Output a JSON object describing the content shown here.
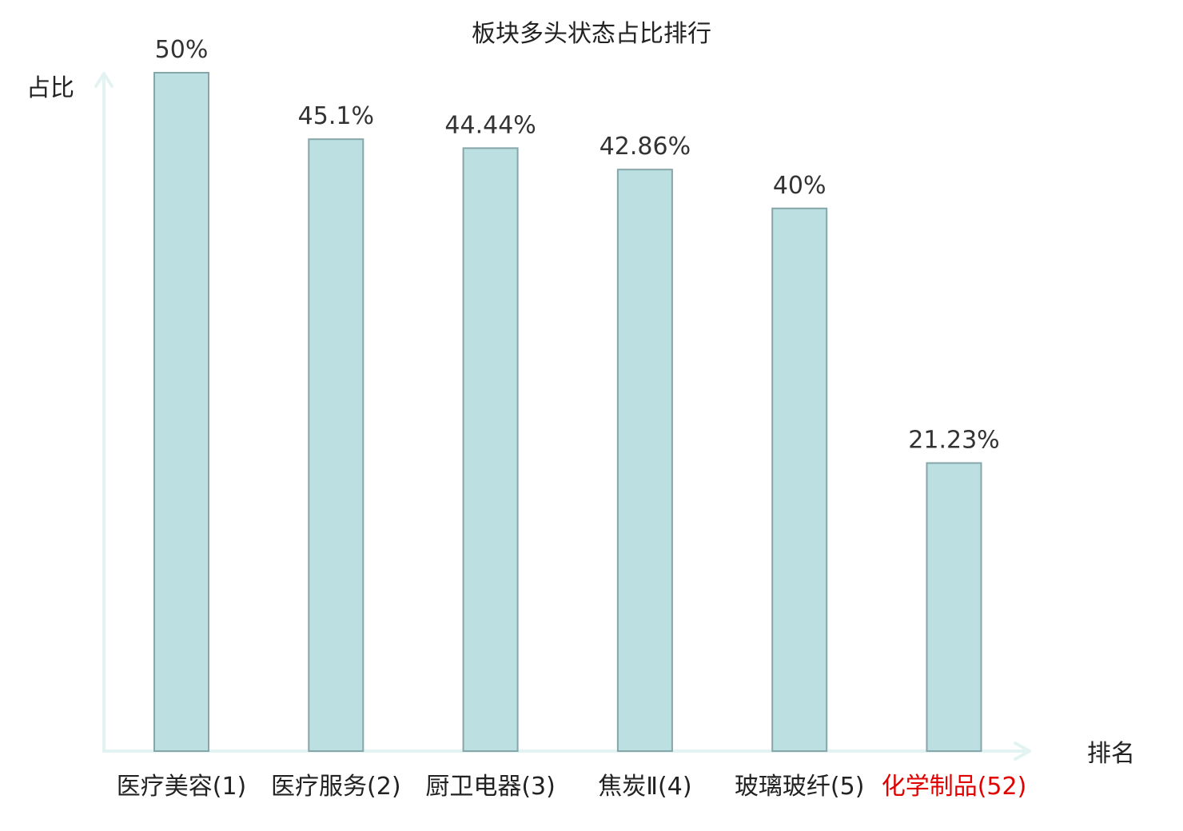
{
  "chart_data": {
    "type": "bar",
    "title": "板块多头状态占比排行",
    "xlabel": "排名",
    "ylabel": "占比",
    "ylim": [
      0,
      50
    ],
    "grid": false,
    "categories": [
      "医疗美容(1)",
      "医疗服务(2)",
      "厨卫电器(3)",
      "焦炭Ⅱ(4)",
      "玻璃玻纤(5)",
      "化学制品(52)"
    ],
    "values": [
      50,
      45.1,
      44.44,
      42.86,
      40,
      21.23
    ],
    "value_labels": [
      "50%",
      "45.1%",
      "44.44%",
      "42.86%",
      "40%",
      "21.23%"
    ],
    "category_colors": [
      "#222222",
      "#222222",
      "#222222",
      "#222222",
      "#222222",
      "#e00000"
    ],
    "colors": {
      "bar_fill": "#bce0e2",
      "bar_stroke": "#86a6a9",
      "axis": "#e2f3f1"
    }
  }
}
